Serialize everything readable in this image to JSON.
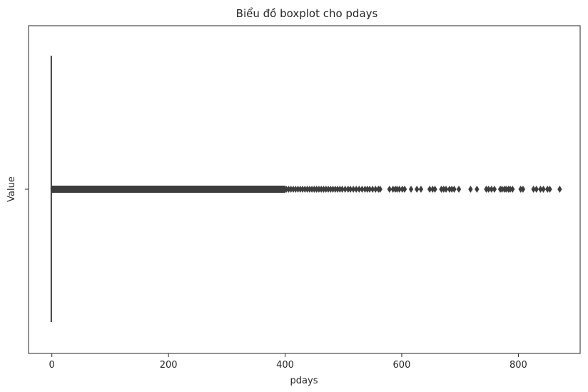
{
  "chart_data": {
    "type": "boxplot",
    "title": "Biểu đồ boxplot cho pdays",
    "xlabel": "pdays",
    "ylabel": "Value",
    "xlim": [
      -40,
      906
    ],
    "xticks": [
      0,
      200,
      400,
      600,
      800
    ],
    "xtick_labels": [
      "0",
      "200",
      "400",
      "600",
      "800"
    ],
    "box": {
      "min": -1,
      "q1": -1,
      "median": -1,
      "q3": -1,
      "max": -1
    },
    "outliers": {
      "dense_range": [
        1,
        398
      ],
      "points": [
        402,
        406,
        410,
        414,
        418,
        422,
        426,
        430,
        434,
        438,
        442,
        446,
        450,
        454,
        458,
        462,
        466,
        470,
        474,
        478,
        482,
        486,
        490,
        494,
        498,
        503,
        508,
        512,
        517,
        522,
        527,
        532,
        537,
        541,
        545,
        550,
        555,
        560,
        563,
        579,
        585,
        589,
        592,
        596,
        601,
        605,
        616,
        626,
        633,
        648,
        653,
        657,
        668,
        672,
        676,
        682,
        686,
        690,
        698,
        718,
        729,
        745,
        749,
        754,
        759,
        769,
        772,
        776,
        779,
        783,
        786,
        790,
        804,
        808,
        826,
        831,
        838,
        843,
        850,
        854,
        871
      ]
    },
    "colors": {
      "marker": "#3d3d3d",
      "axis": "#262626"
    },
    "grid": false,
    "legend": "none"
  }
}
